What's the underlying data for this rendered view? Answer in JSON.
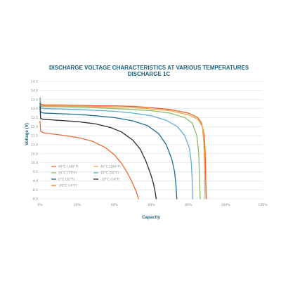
{
  "chart_data": {
    "type": "line",
    "title": "DISCHARGE VOLTAGE CHARACTERISTICS AT VARIOUS TEMPERATURES",
    "subtitle": "DISCHARGE 1C",
    "xlabel": "Capacity",
    "ylabel": "Voltage (V)",
    "xlim": [
      0,
      100
    ],
    "ylim": [
      8.0,
      14.5
    ],
    "x_ticks": [
      "0%",
      "20%",
      "40%",
      "60%",
      "80%",
      "100%",
      "120%"
    ],
    "y_ticks": [
      "8.0",
      "8.5",
      "9.0",
      "9.5",
      "10.0",
      "10.5",
      "11.0",
      "11.5",
      "12.0",
      "12.5",
      "13.0",
      "13.5",
      "14.0",
      "14.5"
    ],
    "grid": "horizontal",
    "legend_position": "bottom-left",
    "series": [
      {
        "name": "60°C (140°F)",
        "color": "#e8622c",
        "x": [
          0,
          0.3,
          2,
          10,
          20,
          30,
          40,
          50,
          60,
          70,
          80,
          85,
          87,
          88.5,
          89,
          89.3,
          89.6
        ],
        "y": [
          13.6,
          13.25,
          13.2,
          13.2,
          13.18,
          13.15,
          13.15,
          13.12,
          13.05,
          12.95,
          12.75,
          12.5,
          12.2,
          11.5,
          10.5,
          9.0,
          8.0
        ]
      },
      {
        "name": "40°C (104°F)",
        "color": "#f0a94a",
        "x": [
          0,
          0.3,
          2,
          10,
          20,
          30,
          40,
          50,
          60,
          70,
          80,
          85,
          87.5,
          88.3,
          88.7,
          88.9
        ],
        "y": [
          13.55,
          13.2,
          13.15,
          13.15,
          13.12,
          13.1,
          13.08,
          13.05,
          12.98,
          12.88,
          12.65,
          12.4,
          12.0,
          11.0,
          9.5,
          8.0
        ]
      },
      {
        "name": "25°C (77°F)",
        "color": "#8bbd6a",
        "x": [
          0,
          0.3,
          2,
          10,
          20,
          30,
          40,
          50,
          60,
          70,
          78,
          82,
          84.5,
          85.5,
          86,
          86.3
        ],
        "y": [
          13.6,
          13.15,
          13.1,
          13.1,
          13.08,
          13.05,
          13.0,
          12.95,
          12.88,
          12.75,
          12.5,
          12.2,
          11.5,
          10.5,
          9.0,
          8.0
        ]
      },
      {
        "name": "10°C (50°F)",
        "color": "#63aecb",
        "x": [
          0,
          0.3,
          2,
          10,
          20,
          30,
          40,
          50,
          60,
          68,
          74,
          78,
          80.5,
          81.5,
          82,
          82.2
        ],
        "y": [
          13.5,
          13.05,
          13.0,
          12.98,
          12.95,
          12.9,
          12.85,
          12.75,
          12.6,
          12.35,
          12.0,
          11.5,
          10.8,
          10.0,
          9.0,
          8.0
        ]
      },
      {
        "name": "0°C (32°F)",
        "color": "#1f6d8e",
        "x": [
          0,
          0.3,
          2,
          10,
          20,
          30,
          40,
          50,
          58,
          64,
          68,
          71,
          72.5,
          73.3,
          73.7
        ],
        "y": [
          13.3,
          12.8,
          12.75,
          12.72,
          12.68,
          12.6,
          12.5,
          12.32,
          12.05,
          11.6,
          11.0,
          10.2,
          9.5,
          8.7,
          8.0
        ]
      },
      {
        "name": "-10°C (14°F)",
        "color": "#2b2b2b",
        "x": [
          0,
          0.3,
          2,
          10,
          20,
          30,
          38,
          44,
          50,
          54,
          57,
          59.5,
          61,
          62,
          62.6
        ],
        "y": [
          13.1,
          12.45,
          12.4,
          12.35,
          12.28,
          12.15,
          11.95,
          11.7,
          11.25,
          10.75,
          10.1,
          9.4,
          8.9,
          8.4,
          8.0
        ]
      },
      {
        "name": "-20°C (-4°F)",
        "color": "#ed6a35",
        "x": [
          0,
          0.3,
          2,
          10,
          20,
          28,
          35,
          40,
          44,
          47,
          49.5,
          51,
          52.2,
          53
        ],
        "y": [
          12.3,
          11.75,
          11.65,
          11.55,
          11.4,
          11.2,
          10.85,
          10.45,
          9.95,
          9.45,
          8.95,
          8.6,
          8.3,
          8.0
        ]
      }
    ]
  }
}
